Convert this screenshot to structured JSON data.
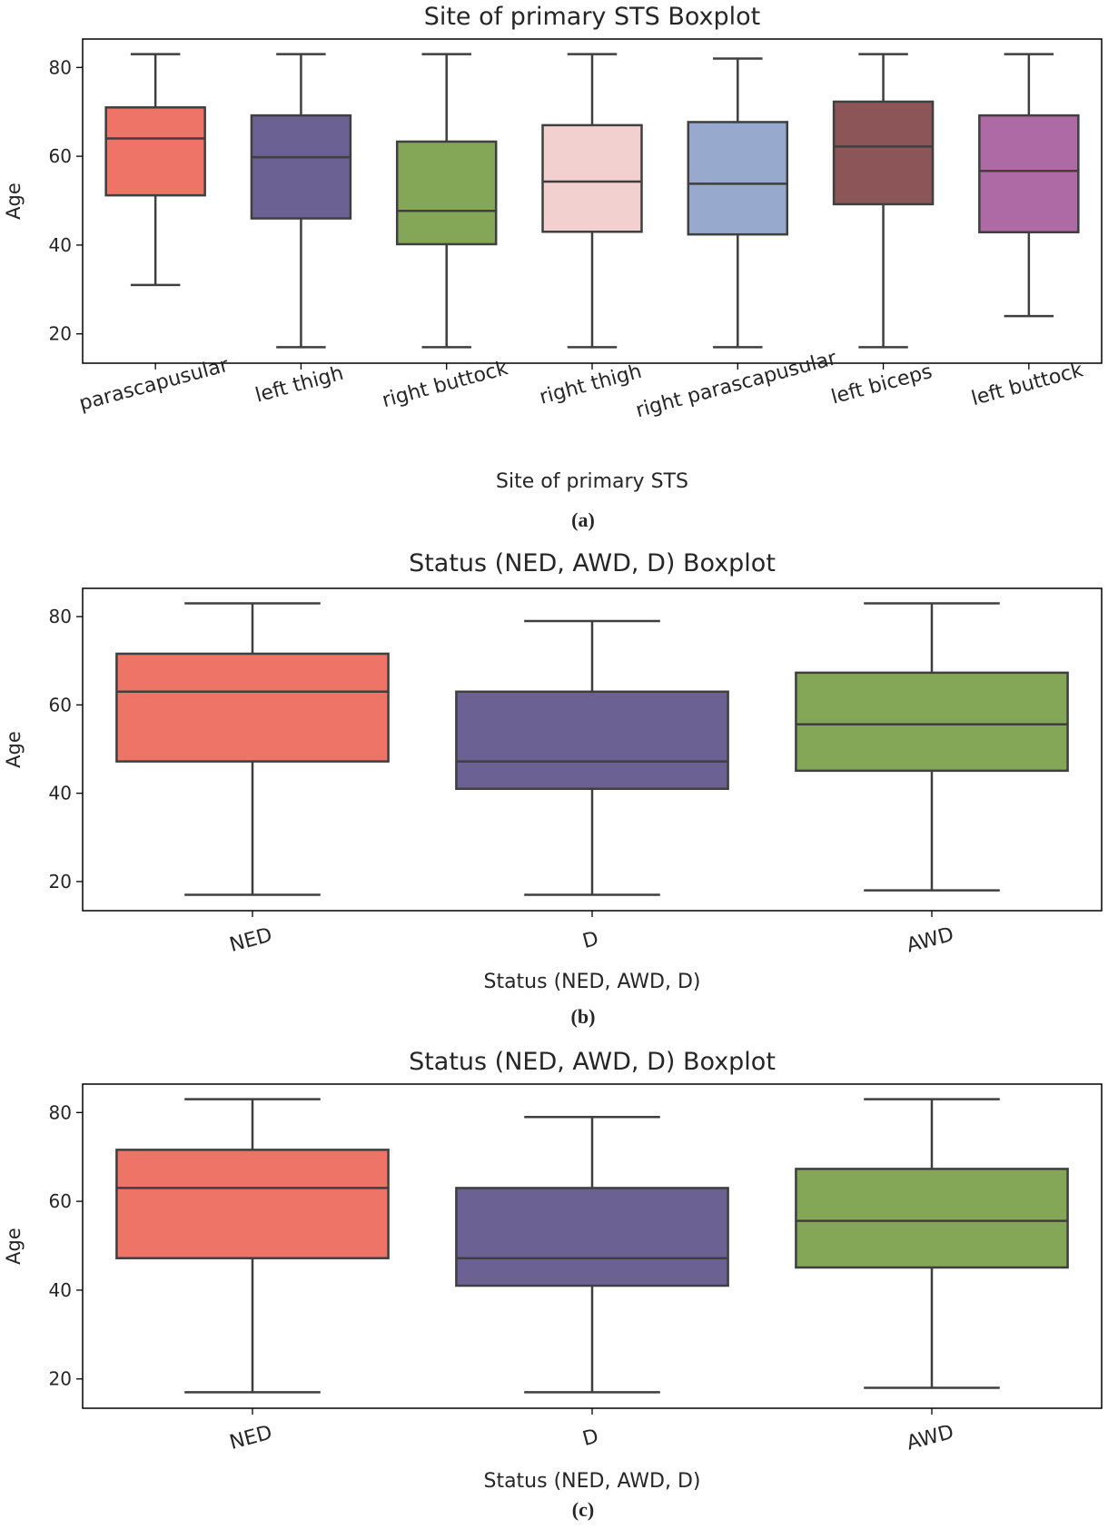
{
  "chart_data": [
    {
      "type": "box",
      "panel_label": "(a)",
      "title": "Site of primary STS Boxplot",
      "xlabel": "Site of primary STS",
      "ylabel": "Age",
      "ylim": [
        13.4,
        86.4
      ],
      "yticks": [
        20,
        40,
        60,
        80
      ],
      "grid": false,
      "categories": [
        "parascapusular",
        "left thigh",
        "right buttock",
        "right thigh",
        "right parascapusular",
        "left biceps",
        "left buttock"
      ],
      "colors": [
        "#ee7468",
        "#6c6193",
        "#84a757",
        "#f2d0cf",
        "#97a9cc",
        "#8c5558",
        "#ad6aa4"
      ],
      "boxes": [
        {
          "whisker_low": 31,
          "q1": 51.2,
          "median": 64,
          "q3": 71,
          "whisker_high": 83
        },
        {
          "whisker_low": 17,
          "q1": 46,
          "median": 59.8,
          "q3": 69.2,
          "whisker_high": 83
        },
        {
          "whisker_low": 17,
          "q1": 40.2,
          "median": 47.7,
          "q3": 63.3,
          "whisker_high": 83
        },
        {
          "whisker_low": 17,
          "q1": 43,
          "median": 54.3,
          "q3": 67,
          "whisker_high": 83
        },
        {
          "whisker_low": 17,
          "q1": 42.4,
          "median": 53.8,
          "q3": 67.7,
          "whisker_high": 82
        },
        {
          "whisker_low": 17,
          "q1": 49.2,
          "median": 62.2,
          "q3": 72.3,
          "whisker_high": 83
        },
        {
          "whisker_low": 24,
          "q1": 42.9,
          "median": 56.7,
          "q3": 69.2,
          "whisker_high": 83
        }
      ]
    },
    {
      "type": "box",
      "panel_label": "(b)",
      "title": "Status (NED, AWD, D) Boxplot",
      "xlabel": "Status (NED, AWD, D)",
      "ylabel": "Age",
      "ylim": [
        13.4,
        86.4
      ],
      "yticks": [
        20,
        40,
        60,
        80
      ],
      "grid": false,
      "categories": [
        "NED",
        "D",
        "AWD"
      ],
      "colors": [
        "#ee7468",
        "#6c6193",
        "#84a757"
      ],
      "boxes": [
        {
          "whisker_low": 17,
          "q1": 47.2,
          "median": 63,
          "q3": 71.6,
          "whisker_high": 83
        },
        {
          "whisker_low": 17,
          "q1": 41,
          "median": 47.2,
          "q3": 63,
          "whisker_high": 79
        },
        {
          "whisker_low": 18,
          "q1": 45.1,
          "median": 55.6,
          "q3": 67.3,
          "whisker_high": 83
        }
      ]
    },
    {
      "type": "box",
      "panel_label": "(c)",
      "title": "Status (NED, AWD, D) Boxplot",
      "xlabel": "Status (NED, AWD, D)",
      "ylabel": "Age",
      "ylim": [
        13.4,
        86.4
      ],
      "yticks": [
        20,
        40,
        60,
        80
      ],
      "grid": false,
      "categories": [
        "NED",
        "D",
        "AWD"
      ],
      "colors": [
        "#ee7468",
        "#6c6193",
        "#84a757"
      ],
      "boxes": [
        {
          "whisker_low": 17,
          "q1": 47.2,
          "median": 63,
          "q3": 71.6,
          "whisker_high": 83
        },
        {
          "whisker_low": 17,
          "q1": 41,
          "median": 47.2,
          "q3": 63,
          "whisker_high": 79
        },
        {
          "whisker_low": 18,
          "q1": 45.1,
          "median": 55.6,
          "q3": 67.3,
          "whisker_high": 83
        }
      ]
    }
  ]
}
